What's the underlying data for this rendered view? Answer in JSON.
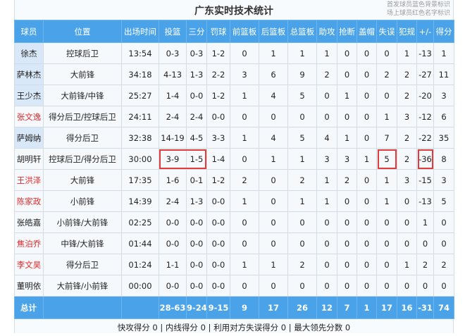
{
  "title": "广东实时技术统计",
  "notes": [
    "首发球员蓝色背景标识",
    "场上球员红色名字标识"
  ],
  "headers": [
    "球员",
    "位置",
    "出场时间",
    "投篮",
    "三分",
    "罚球",
    "前篮板",
    "后篮板",
    "总篮板",
    "助攻",
    "抢断",
    "盖帽",
    "失误",
    "犯规",
    "+/-",
    "得分"
  ],
  "colors": {
    "header": "#4aa3e8",
    "starter_bg": "#d9e8f8",
    "on_court_name": "#e02b2b",
    "highlight_box": "#e23b3b"
  },
  "rows": [
    {
      "starter": true,
      "on_court": false,
      "cells": [
        "徐杰",
        "控球后卫",
        "13:54",
        "0-3",
        "0-3",
        "1-2",
        "0",
        "1",
        "1",
        "1",
        "0",
        "0",
        "0",
        "1",
        "-13",
        "1"
      ]
    },
    {
      "starter": true,
      "on_court": false,
      "cells": [
        "萨林杰",
        "大前锋",
        "34:18",
        "4-13",
        "1-3",
        "2-2",
        "3",
        "6",
        "9",
        "2",
        "0",
        "0",
        "2",
        "2",
        "-27",
        "11"
      ]
    },
    {
      "starter": true,
      "on_court": false,
      "cells": [
        "王少杰",
        "大前锋/中锋",
        "25:27",
        "1-4",
        "0-0",
        "1-2",
        "1",
        "4",
        "5",
        "0",
        "1",
        "0",
        "0",
        "2",
        "-20",
        "3"
      ]
    },
    {
      "starter": false,
      "on_court": true,
      "cells": [
        "张文逸",
        "得分后卫/控球后卫",
        "24:11",
        "2-4",
        "2-4",
        "0-0",
        "0",
        "0",
        "0",
        "0",
        "0",
        "0",
        "1",
        "3",
        "-12",
        "6"
      ]
    },
    {
      "starter": true,
      "on_court": false,
      "cells": [
        "萨姆纳",
        "得分后卫",
        "32:38",
        "14-19",
        "4-5",
        "3-3",
        "1",
        "4",
        "5",
        "4",
        "1",
        "0",
        "7",
        "2",
        "-22",
        "35"
      ]
    },
    {
      "starter": false,
      "on_court": false,
      "highlight": true,
      "cells": [
        "胡明轩",
        "控球后卫/得分后卫",
        "30:00",
        "3-9",
        "1-5",
        "1-4",
        "0",
        "1",
        "1",
        "3",
        "3",
        "1",
        "5",
        "2",
        "-36",
        "8"
      ]
    },
    {
      "starter": false,
      "on_court": true,
      "cells": [
        "王洪泽",
        "大前锋",
        "17:35",
        "1-6",
        "0-1",
        "1-2",
        "2",
        "0",
        "2",
        "1",
        "2",
        "0",
        "1",
        "3",
        "-15",
        "3"
      ]
    },
    {
      "starter": false,
      "on_court": true,
      "cells": [
        "陈家政",
        "小前锋",
        "14:39",
        "2-4",
        "1-3",
        "0-0",
        "1",
        "0",
        "1",
        "1",
        "0",
        "0",
        "1",
        "0",
        "-13",
        "5"
      ]
    },
    {
      "starter": false,
      "on_court": false,
      "cells": [
        "张皓嘉",
        "小前锋/大前锋",
        "02:25",
        "0-0",
        "0-0",
        "0-0",
        "0",
        "0",
        "0",
        "0",
        "0",
        "0",
        "0",
        "0",
        "1",
        "0"
      ]
    },
    {
      "starter": false,
      "on_court": true,
      "cells": [
        "焦泊乔",
        "中锋/大前锋",
        "01:44",
        "0-0",
        "0-0",
        "0-0",
        "0",
        "0",
        "0",
        "0",
        "0",
        "0",
        "0",
        "0",
        "0",
        "0"
      ]
    },
    {
      "starter": false,
      "on_court": true,
      "cells": [
        "李文昊",
        "得分后卫",
        "01:24",
        "1-1",
        "0-0",
        "0-0",
        "1",
        "1",
        "2",
        "0",
        "0",
        "0",
        "0",
        "1",
        "2",
        "2"
      ]
    },
    {
      "starter": false,
      "on_court": false,
      "cells": [
        "董明依",
        "大前锋/小前锋",
        "00:00",
        "0-0",
        "0-0",
        "0-0",
        "0",
        "0",
        "0",
        "0",
        "0",
        "0",
        "0",
        "0",
        "0",
        "0"
      ]
    }
  ],
  "total": [
    "总计",
    "",
    "",
    "28-63",
    "9-24",
    "9-15",
    "9",
    "17",
    "26",
    "12",
    "7",
    "1",
    "17",
    "16",
    "-31",
    "74"
  ],
  "footer": "快攻得分 0 | 内线得分 0 | 利用对方失误得分 0 | 最大领先分数 0"
}
